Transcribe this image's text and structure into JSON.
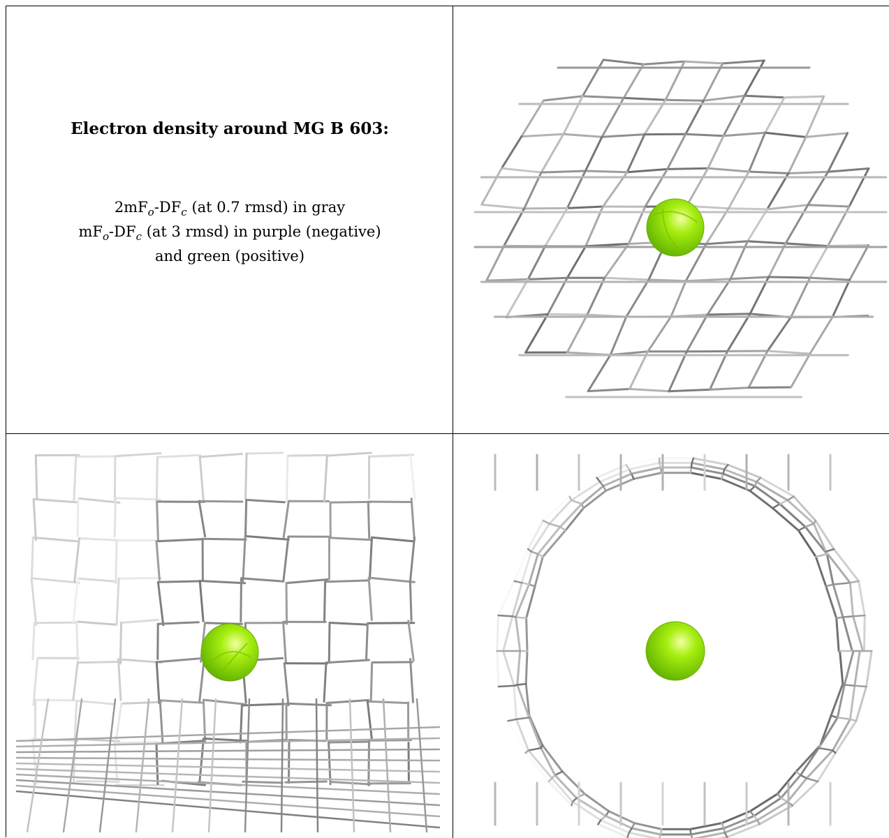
{
  "figure": {
    "title": "Electron density around MG B 603:",
    "lines": [
      "2mFo-DFc (at 0.7 rmsd) in gray",
      "mFo-DFc (at 3 rmsd) in purple (negative)",
      "and green (positive)"
    ],
    "colors": {
      "mesh": "#8c8c8c",
      "atom": "#88e000",
      "atom_highlight": "#e8ff80",
      "border": "#000000"
    }
  }
}
